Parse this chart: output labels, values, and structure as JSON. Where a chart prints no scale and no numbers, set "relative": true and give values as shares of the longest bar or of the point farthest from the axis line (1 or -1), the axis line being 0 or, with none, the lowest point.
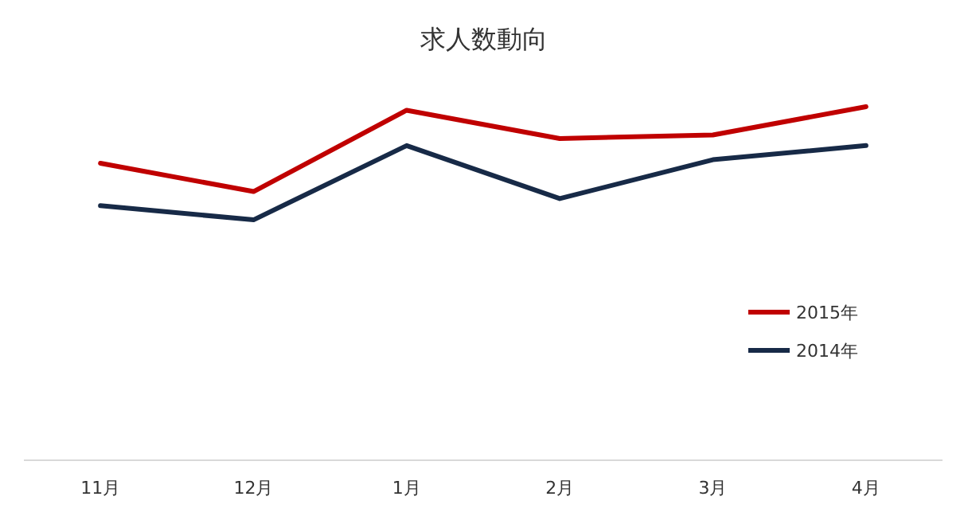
{
  "chart_data": {
    "type": "line",
    "title": "求人数動向",
    "categories": [
      "11月",
      "12月",
      "1月",
      "2月",
      "3月",
      "4月"
    ],
    "relative": true,
    "legend": "right",
    "marker": "none",
    "line_style": "solid",
    "series": [
      {
        "name": "2015年",
        "color": "#c00000",
        "values": [
          0.84,
          0.76,
          0.99,
          0.91,
          0.92,
          1
        ]
      },
      {
        "name": "2014年",
        "color": "#172a47",
        "values": [
          0.72,
          0.68,
          0.89,
          0.74,
          0.85,
          0.89
        ]
      }
    ]
  }
}
